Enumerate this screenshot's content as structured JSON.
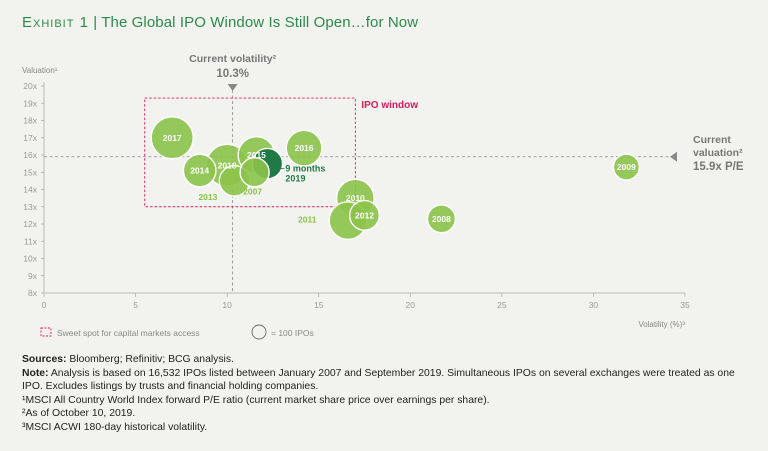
{
  "header": {
    "exhibit": "Exhibit 1",
    "separator": " | ",
    "title": "The Global IPO Window Is Still Open…for Now"
  },
  "colors": {
    "title_green": "#2c8a4c",
    "bubble_light": "#8bc34a",
    "bubble_dark": "#1f7a46",
    "window_red": "#d81b60",
    "axis_gray": "#888888"
  },
  "chart_data": {
    "type": "scatter",
    "ylabel": "Valuation¹",
    "xlabel": "Volatility (%)³",
    "xlim": [
      0,
      35
    ],
    "ylim": [
      8,
      20
    ],
    "xticks": [
      0,
      5,
      10,
      15,
      20,
      25,
      30,
      35
    ],
    "yticks": [
      {
        "v": 8,
        "label": "8x"
      },
      {
        "v": 9,
        "label": "9x"
      },
      {
        "v": 10,
        "label": "10x"
      },
      {
        "v": 11,
        "label": "11x"
      },
      {
        "v": 12,
        "label": "12x"
      },
      {
        "v": 13,
        "label": "13x"
      },
      {
        "v": 14,
        "label": "14x"
      },
      {
        "v": 15,
        "label": "15x"
      },
      {
        "v": 16,
        "label": "16x"
      },
      {
        "v": 17,
        "label": "17x"
      },
      {
        "v": 18,
        "label": "18x"
      },
      {
        "v": 19,
        "label": "19x"
      },
      {
        "v": 20,
        "label": "20x"
      }
    ],
    "bubble_unit": "= 100 IPOs",
    "bubbles": [
      {
        "label": "2017",
        "x": 7.0,
        "y": 17.0,
        "ipos": 250,
        "emphasis": false
      },
      {
        "label": "2014",
        "x": 8.5,
        "y": 15.1,
        "ipos": 150,
        "emphasis": false
      },
      {
        "label": "2013",
        "x": 10.4,
        "y": 14.5,
        "ipos": 130,
        "emphasis": false
      },
      {
        "label": "2018",
        "x": 10.0,
        "y": 15.4,
        "ipos": 250,
        "emphasis": false
      },
      {
        "label": "2015",
        "x": 11.6,
        "y": 16.0,
        "ipos": 190,
        "emphasis": false
      },
      {
        "label": "2007",
        "x": 11.5,
        "y": 15.0,
        "ipos": 120,
        "emphasis": false
      },
      {
        "label": "2016",
        "x": 14.2,
        "y": 16.4,
        "ipos": 180,
        "emphasis": false
      },
      {
        "label": "9 months 2019",
        "x": 12.2,
        "y": 15.5,
        "ipos": 130,
        "emphasis": true
      },
      {
        "label": "2010",
        "x": 17.0,
        "y": 13.5,
        "ipos": 200,
        "emphasis": false
      },
      {
        "label": "2011",
        "x": 16.6,
        "y": 12.2,
        "ipos": 200,
        "emphasis": false
      },
      {
        "label": "2012",
        "x": 17.5,
        "y": 12.5,
        "ipos": 125,
        "emphasis": false
      },
      {
        "label": "2008",
        "x": 21.7,
        "y": 12.3,
        "ipos": 110,
        "emphasis": false
      },
      {
        "label": "2009",
        "x": 31.8,
        "y": 15.3,
        "ipos": 95,
        "emphasis": false
      }
    ],
    "ipo_window": {
      "label": "IPO window",
      "x0": 5.5,
      "x1": 17.0,
      "y0": 13.0,
      "y1": 19.3
    },
    "current_volatility": {
      "label": "Current volatility²",
      "value_text": "10.3%",
      "x": 10.3
    },
    "current_valuation": {
      "label_line1": "Current",
      "label_line2": "valuation²",
      "value_text": "15.9x P/E",
      "y": 15.9
    },
    "legend": {
      "sweet_spot": "Sweet spot for capital markets access",
      "bubble_size": "= 100 IPOs"
    }
  },
  "notes": {
    "sources_label": "Sources:",
    "sources_text": " Bloomberg; Refinitiv; BCG analysis.",
    "note_label": "Note:",
    "note_text": " Analysis is based on 16,532 IPOs listed between January 2007 and September 2019. Simultaneous IPOs on several exchanges were treated as one IPO. Excludes listings by trusts and financial holding companies.",
    "fn1": "¹MSCI All Country World Index forward P/E ratio (current market share price over earnings per share).",
    "fn2": "²As of October 10, 2019.",
    "fn3": "³MSCI ACWI 180-day historical volatility."
  }
}
